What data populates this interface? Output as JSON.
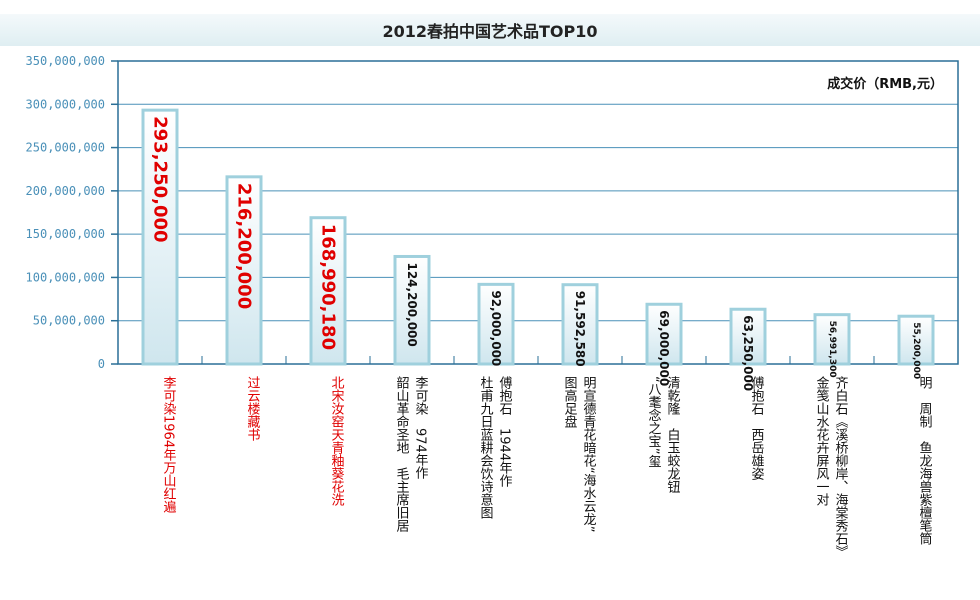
{
  "chart_data": {
    "type": "bar",
    "title": "2012春拍中国艺术品TOP10",
    "ylabel": "成交价（RMB,元）",
    "ylim": [
      0,
      350000000
    ],
    "yticks": [
      "0",
      "50,000,000",
      "100,000,000",
      "150,000,000",
      "200,000,000",
      "250,000,000",
      "300,000,000",
      "350,000,000"
    ],
    "grid": true,
    "values": [
      293250000,
      216200000,
      168990180,
      124200000,
      92000000,
      91592580,
      69000000,
      63250000,
      56991300,
      55200000
    ],
    "value_labels": [
      "293,250,000",
      "216,200,000",
      "168,990,180",
      "124,200,000",
      "92,000,000",
      "91,592,580",
      "69,000,000",
      "63,250,000",
      "56,991,300",
      "55,200,000"
    ],
    "categories": [
      [
        "李可染1964年万山红遍"
      ],
      [
        "过云楼藏书"
      ],
      [
        "北宋汝窑天青釉葵花洗"
      ],
      [
        "李可染　974年作",
        "韶山革命圣地　毛主席旧居"
      ],
      [
        "傅抱石　1944年作",
        "杜甫九日蓝耕会饮诗意图"
      ],
      [
        "明宣德青花暗花“海水云龙”",
        "图高足盘"
      ],
      [
        "清乾隆　白玉蛟龙钮",
        "“八耄念之宝”玺"
      ],
      [
        "傅抱石　西岳雄姿"
      ],
      [
        "齐白石《溪桥柳岸、海棠秀石》",
        "金笺山水花卉屏风一对"
      ],
      [
        "明　周制　鱼龙海兽紫檀笔筒"
      ]
    ],
    "highlight_count": 3,
    "colors": {
      "grid": "#4a90b8",
      "axis": "#2a6f97",
      "bar_fill_top": "#ffffff",
      "bar_fill_bottom": "#cfe6ee",
      "bar_stroke": "#9fd0dd",
      "highlight_text": "#e00000",
      "normal_text": "#111111"
    }
  }
}
